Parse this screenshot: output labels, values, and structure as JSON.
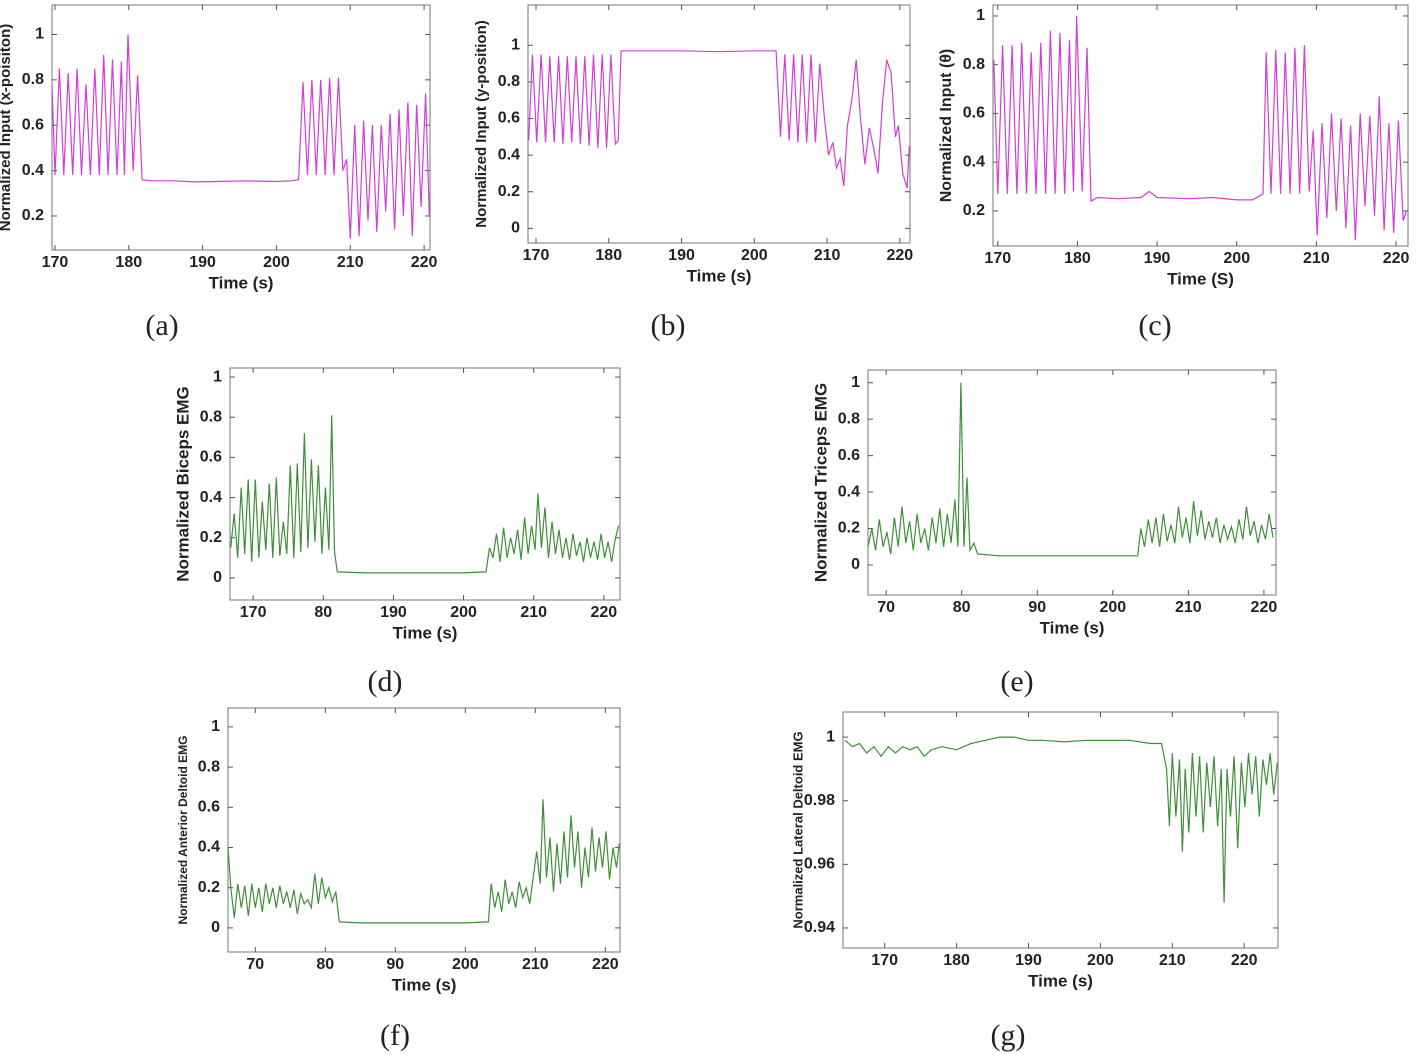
{
  "chart_data": [
    {
      "type": "line",
      "caption": "(a)",
      "xlabel": "Time (s)",
      "ylabel": "Normalized Input (x-poisiton)",
      "color": "#d13fd6",
      "xlim": [
        169.6,
        220.8
      ],
      "ylim": [
        0.05,
        1.13
      ],
      "xticks": [
        170,
        180,
        190,
        200,
        210,
        220
      ],
      "yticks": [
        0.2,
        0.4,
        0.6,
        0.8,
        1
      ],
      "x": [
        169.6,
        170.0,
        170.6,
        171.2,
        171.8,
        172.4,
        173.0,
        173.6,
        174.2,
        174.8,
        175.4,
        176.0,
        176.6,
        177.2,
        177.8,
        178.4,
        179.0,
        179.4,
        179.9,
        180.6,
        181.2,
        181.8,
        183,
        186,
        189,
        192,
        196,
        200,
        202,
        203,
        203.6,
        204.2,
        204.8,
        205.4,
        206,
        206.6,
        207.2,
        207.8,
        208.4,
        209.0,
        209.5,
        210.0,
        210.6,
        211.2,
        211.8,
        212.4,
        213.0,
        213.6,
        214.2,
        214.8,
        215.4,
        216.0,
        216.6,
        217.2,
        217.8,
        218.4,
        219.0,
        219.6,
        220.2,
        220.7
      ],
      "values": [
        0.78,
        0.38,
        0.85,
        0.38,
        0.83,
        0.38,
        0.85,
        0.38,
        0.78,
        0.38,
        0.85,
        0.38,
        0.91,
        0.38,
        0.89,
        0.38,
        0.88,
        0.38,
        1.0,
        0.4,
        0.82,
        0.36,
        0.355,
        0.355,
        0.35,
        0.352,
        0.355,
        0.352,
        0.355,
        0.36,
        0.79,
        0.38,
        0.8,
        0.38,
        0.8,
        0.38,
        0.81,
        0.38,
        0.81,
        0.4,
        0.45,
        0.1,
        0.6,
        0.11,
        0.62,
        0.18,
        0.6,
        0.13,
        0.6,
        0.22,
        0.65,
        0.14,
        0.67,
        0.2,
        0.7,
        0.11,
        0.69,
        0.24,
        0.74,
        0.2
      ]
    },
    {
      "type": "line",
      "caption": "(b)",
      "xlabel": "Time (s)",
      "ylabel": "Normalized Input (y-position)",
      "color": "#d13fd6",
      "xlim": [
        168.9,
        221.4
      ],
      "ylim": [
        -0.08,
        1.22
      ],
      "xticks": [
        170,
        180,
        190,
        200,
        210,
        220
      ],
      "yticks": [
        0,
        0.2,
        0.4,
        0.6,
        0.8,
        1
      ],
      "x": [
        169,
        169.5,
        170.1,
        170.7,
        171.3,
        171.9,
        172.5,
        173.1,
        173.7,
        174.3,
        174.9,
        175.5,
        176.1,
        176.7,
        177.3,
        177.9,
        178.5,
        179.1,
        179.7,
        180.3,
        180.9,
        181.3,
        181.7,
        185,
        190,
        195,
        200,
        203,
        203.6,
        204.2,
        204.8,
        205.4,
        206,
        206.6,
        207.2,
        207.8,
        208.4,
        209,
        209.6,
        210.2,
        210.8,
        211.3,
        211.8,
        212.3,
        212.8,
        213.4,
        214.0,
        214.6,
        215.2,
        215.8,
        216.4,
        217.0,
        217.6,
        218.2,
        218.8,
        219.4,
        219.8,
        220.4,
        221,
        221.3
      ],
      "values": [
        0.48,
        0.95,
        0.47,
        0.95,
        0.47,
        0.94,
        0.47,
        0.94,
        0.46,
        0.94,
        0.47,
        0.94,
        0.46,
        0.94,
        0.45,
        0.95,
        0.44,
        0.95,
        0.44,
        0.95,
        0.46,
        0.48,
        0.97,
        0.97,
        0.97,
        0.965,
        0.97,
        0.97,
        0.5,
        0.95,
        0.48,
        0.95,
        0.47,
        0.95,
        0.47,
        0.95,
        0.47,
        0.9,
        0.62,
        0.4,
        0.47,
        0.33,
        0.38,
        0.23,
        0.56,
        0.7,
        0.92,
        0.6,
        0.35,
        0.55,
        0.44,
        0.3,
        0.68,
        0.92,
        0.85,
        0.5,
        0.56,
        0.3,
        0.22,
        0.45
      ]
    },
    {
      "type": "line",
      "caption": "(c)",
      "xlabel": "Time (S)",
      "ylabel": "Normalized Input (θ)",
      "color": "#d13fd6",
      "xlim": [
        169.4,
        221.5
      ],
      "ylim": [
        0.056,
        1.045
      ],
      "xticks": [
        170,
        180,
        190,
        200,
        210,
        220
      ],
      "yticks": [
        0.2,
        0.4,
        0.6,
        0.8,
        1
      ],
      "x": [
        169.5,
        170.0,
        170.6,
        171.2,
        171.8,
        172.4,
        173.0,
        173.6,
        174.2,
        174.8,
        175.4,
        176.0,
        176.6,
        177.2,
        177.8,
        178.4,
        179.0,
        179.5,
        179.9,
        180.6,
        181.2,
        181.7,
        182.5,
        185,
        188,
        189,
        190,
        194,
        197,
        200,
        202,
        203.3,
        203.7,
        204.3,
        204.9,
        205.5,
        206.1,
        206.7,
        207.3,
        207.9,
        208.5,
        209.1,
        209.6,
        210.1,
        210.7,
        211.3,
        211.9,
        212.5,
        213.1,
        213.7,
        214.3,
        214.9,
        215.5,
        216.1,
        216.7,
        217.3,
        217.9,
        218.5,
        219.1,
        219.7,
        220.3,
        220.9,
        221.3
      ],
      "values": [
        0.82,
        0.27,
        0.88,
        0.27,
        0.88,
        0.27,
        0.89,
        0.27,
        0.85,
        0.27,
        0.89,
        0.27,
        0.94,
        0.27,
        0.93,
        0.27,
        0.9,
        0.28,
        1.0,
        0.28,
        0.87,
        0.24,
        0.255,
        0.25,
        0.255,
        0.28,
        0.255,
        0.25,
        0.255,
        0.245,
        0.245,
        0.27,
        0.85,
        0.27,
        0.86,
        0.27,
        0.85,
        0.27,
        0.87,
        0.27,
        0.88,
        0.28,
        0.53,
        0.1,
        0.56,
        0.17,
        0.6,
        0.2,
        0.58,
        0.13,
        0.55,
        0.08,
        0.6,
        0.22,
        0.59,
        0.18,
        0.67,
        0.12,
        0.56,
        0.11,
        0.57,
        0.16,
        0.2
      ]
    },
    {
      "type": "line",
      "caption": "(d)",
      "xlabel": "Time (s)",
      "ylabel": "Normalized Biceps EMG",
      "color": "#3f8f3a",
      "xlim": [
        166.7,
        222.3
      ],
      "ylim": [
        -0.11,
        1.045
      ],
      "xticks": [
        170,
        {
          "value": 180,
          "label": "80"
        },
        190,
        200,
        210,
        220
      ],
      "yticks": [
        0,
        0.2,
        0.4,
        0.6,
        0.8,
        1
      ],
      "x": [
        166.8,
        167.3,
        167.8,
        168.3,
        168.8,
        169.3,
        169.8,
        170.3,
        170.8,
        171.3,
        171.8,
        172.3,
        172.8,
        173.3,
        173.8,
        174.3,
        174.8,
        175.3,
        175.8,
        176.3,
        176.8,
        177.3,
        177.8,
        178.3,
        178.8,
        179.3,
        179.8,
        180.3,
        180.8,
        181.2,
        181.6,
        182,
        186,
        190,
        195,
        200,
        203.2,
        203.7,
        204.2,
        204.7,
        205.2,
        205.7,
        206.2,
        206.7,
        207.2,
        207.7,
        208.2,
        208.7,
        209.2,
        209.7,
        210.2,
        210.6,
        211.1,
        211.6,
        212.1,
        212.6,
        213.1,
        213.6,
        214.1,
        214.6,
        215.1,
        215.6,
        216.1,
        216.6,
        217.1,
        217.6,
        218.1,
        218.6,
        219.1,
        219.6,
        220.1,
        220.6,
        221.1,
        221.6,
        222.1
      ],
      "values": [
        0.15,
        0.32,
        0.1,
        0.45,
        0.12,
        0.49,
        0.08,
        0.49,
        0.1,
        0.38,
        0.14,
        0.47,
        0.1,
        0.5,
        0.11,
        0.28,
        0.12,
        0.56,
        0.1,
        0.57,
        0.13,
        0.72,
        0.15,
        0.59,
        0.18,
        0.56,
        0.12,
        0.45,
        0.14,
        0.81,
        0.13,
        0.03,
        0.025,
        0.025,
        0.025,
        0.025,
        0.03,
        0.15,
        0.1,
        0.22,
        0.08,
        0.25,
        0.1,
        0.2,
        0.12,
        0.24,
        0.09,
        0.3,
        0.12,
        0.26,
        0.14,
        0.42,
        0.15,
        0.35,
        0.1,
        0.28,
        0.12,
        0.24,
        0.1,
        0.2,
        0.09,
        0.22,
        0.11,
        0.18,
        0.08,
        0.2,
        0.1,
        0.18,
        0.09,
        0.22,
        0.1,
        0.18,
        0.08,
        0.19,
        0.26
      ]
    },
    {
      "type": "line",
      "caption": "(e)",
      "xlabel": "Time (s)",
      "ylabel": "Normalized Triceps EMG",
      "color": "#3f8f3a",
      "xlim": [
        167.6,
        221.6
      ],
      "ylim": [
        -0.165,
        1.07
      ],
      "xticks": [
        {
          "value": 170,
          "label": "70"
        },
        {
          "value": 180,
          "label": "80"
        },
        {
          "value": 190,
          "label": "90"
        },
        200,
        210,
        220
      ],
      "yticks": [
        0,
        0.2,
        0.4,
        0.6,
        0.8,
        1
      ],
      "x": [
        167.6,
        168.1,
        168.6,
        169.1,
        169.6,
        170.1,
        170.6,
        171.1,
        171.6,
        172.1,
        172.6,
        173.1,
        173.6,
        174.1,
        174.6,
        175.1,
        175.6,
        176.1,
        176.6,
        177.1,
        177.6,
        178.1,
        178.6,
        179.1,
        179.5,
        179.9,
        180.3,
        180.7,
        181.1,
        181.6,
        182.1,
        185,
        190,
        195,
        200,
        203.3,
        203.7,
        204.2,
        204.7,
        205.2,
        205.7,
        206.2,
        206.7,
        207.2,
        207.7,
        208.2,
        208.7,
        209.2,
        209.7,
        210.2,
        210.7,
        211.2,
        211.7,
        212.2,
        212.7,
        213.2,
        213.7,
        214.2,
        214.7,
        215.2,
        215.7,
        216.2,
        216.7,
        217.2,
        217.7,
        218.2,
        218.7,
        219.2,
        219.7,
        220.2,
        220.7,
        221.2
      ],
      "values": [
        0.1,
        0.2,
        0.08,
        0.25,
        0.1,
        0.18,
        0.06,
        0.26,
        0.1,
        0.32,
        0.12,
        0.24,
        0.08,
        0.28,
        0.12,
        0.2,
        0.08,
        0.26,
        0.12,
        0.31,
        0.1,
        0.28,
        0.12,
        0.36,
        0.1,
        1.0,
        0.1,
        0.48,
        0.08,
        0.12,
        0.06,
        0.05,
        0.05,
        0.05,
        0.05,
        0.05,
        0.2,
        0.1,
        0.25,
        0.12,
        0.26,
        0.1,
        0.28,
        0.13,
        0.22,
        0.12,
        0.32,
        0.15,
        0.26,
        0.12,
        0.35,
        0.16,
        0.3,
        0.14,
        0.24,
        0.15,
        0.26,
        0.12,
        0.22,
        0.14,
        0.21,
        0.12,
        0.25,
        0.14,
        0.32,
        0.16,
        0.24,
        0.12,
        0.22,
        0.14,
        0.28,
        0.15
      ]
    },
    {
      "type": "line",
      "caption": "(f)",
      "xlabel": "Time (s)",
      "ylabel": "Normalized Anterior Deltoid EMG",
      "color": "#3f8f3a",
      "xlim": [
        166.1,
        222.1
      ],
      "ylim": [
        -0.12,
        1.094
      ],
      "xticks": [
        {
          "value": 170,
          "label": "70"
        },
        {
          "value": 180,
          "label": "80"
        },
        {
          "value": 190,
          "label": "90"
        },
        200,
        210,
        220
      ],
      "yticks": [
        0,
        0.2,
        0.4,
        0.6,
        0.8,
        1
      ],
      "x": [
        166.1,
        166.5,
        167,
        167.5,
        168,
        168.5,
        169,
        169.5,
        170,
        170.5,
        171,
        171.5,
        172,
        172.5,
        173,
        173.5,
        174,
        174.5,
        175,
        175.5,
        176,
        176.5,
        177,
        177.5,
        178,
        178.5,
        179,
        179.5,
        180,
        180.5,
        181,
        181.5,
        182,
        185,
        190,
        195,
        200,
        203.3,
        203.7,
        204.2,
        204.7,
        205.2,
        205.7,
        206.2,
        206.7,
        207.2,
        207.7,
        208.2,
        208.7,
        209.2,
        209.7,
        210.2,
        210.7,
        211.1,
        211.6,
        212.1,
        212.6,
        213.1,
        213.6,
        214.1,
        214.6,
        215.1,
        215.6,
        216.1,
        216.6,
        217.1,
        217.6,
        218.1,
        218.6,
        219.1,
        219.6,
        220.1,
        220.6,
        221.1,
        221.6,
        222
      ],
      "values": [
        0.4,
        0.2,
        0.05,
        0.22,
        0.1,
        0.21,
        0.06,
        0.22,
        0.1,
        0.2,
        0.08,
        0.22,
        0.12,
        0.2,
        0.1,
        0.21,
        0.12,
        0.18,
        0.1,
        0.19,
        0.07,
        0.17,
        0.12,
        0.14,
        0.1,
        0.27,
        0.12,
        0.25,
        0.15,
        0.2,
        0.13,
        0.18,
        0.03,
        0.025,
        0.025,
        0.025,
        0.025,
        0.03,
        0.22,
        0.1,
        0.18,
        0.08,
        0.24,
        0.12,
        0.18,
        0.1,
        0.23,
        0.15,
        0.2,
        0.12,
        0.25,
        0.38,
        0.22,
        0.64,
        0.25,
        0.45,
        0.18,
        0.42,
        0.22,
        0.48,
        0.25,
        0.56,
        0.3,
        0.48,
        0.2,
        0.4,
        0.25,
        0.5,
        0.28,
        0.45,
        0.3,
        0.48,
        0.24,
        0.4,
        0.3,
        0.42
      ]
    },
    {
      "type": "line",
      "caption": "(g)",
      "xlabel": "Time (s)",
      "ylabel": "Normalized Lateral Deltoid EMG",
      "color": "#3f8f3a",
      "xlim": [
        164.2,
        224.7
      ],
      "ylim": [
        0.9337,
        1.0079
      ],
      "xticks": [
        170,
        180,
        190,
        200,
        210,
        220
      ],
      "yticks": [
        0.94,
        0.96,
        0.98,
        1
      ],
      "x": [
        164.5,
        165.5,
        166.5,
        167.5,
        168.5,
        169.5,
        170.5,
        171.5,
        172.5,
        173.5,
        174.5,
        175.5,
        176.5,
        178,
        180,
        182,
        184,
        186,
        188,
        190,
        192,
        195,
        198,
        201,
        204,
        207,
        208.5,
        209.2,
        209.6,
        210,
        210.5,
        211,
        211.4,
        211.8,
        212.3,
        212.8,
        213.3,
        213.8,
        214.3,
        214.8,
        215.3,
        215.8,
        216.3,
        216.8,
        217.2,
        217.6,
        218.1,
        218.6,
        219.1,
        219.6,
        220.1,
        220.6,
        221.1,
        221.6,
        222.1,
        222.6,
        223.1,
        223.6,
        224.1,
        224.6
      ],
      "values": [
        0.999,
        0.997,
        0.998,
        0.995,
        0.997,
        0.994,
        0.997,
        0.995,
        0.997,
        0.996,
        0.997,
        0.994,
        0.996,
        0.997,
        0.996,
        0.998,
        0.999,
        1.0,
        1.0,
        0.999,
        0.999,
        0.9985,
        0.999,
        0.999,
        0.999,
        0.998,
        0.998,
        0.99,
        0.972,
        0.995,
        0.975,
        0.993,
        0.964,
        0.99,
        0.97,
        0.995,
        0.975,
        0.994,
        0.97,
        0.992,
        0.978,
        0.994,
        0.972,
        0.99,
        0.948,
        0.99,
        0.975,
        0.994,
        0.965,
        0.992,
        0.978,
        0.995,
        0.982,
        0.994,
        0.975,
        0.993,
        0.985,
        0.995,
        0.982,
        0.992
      ]
    }
  ]
}
